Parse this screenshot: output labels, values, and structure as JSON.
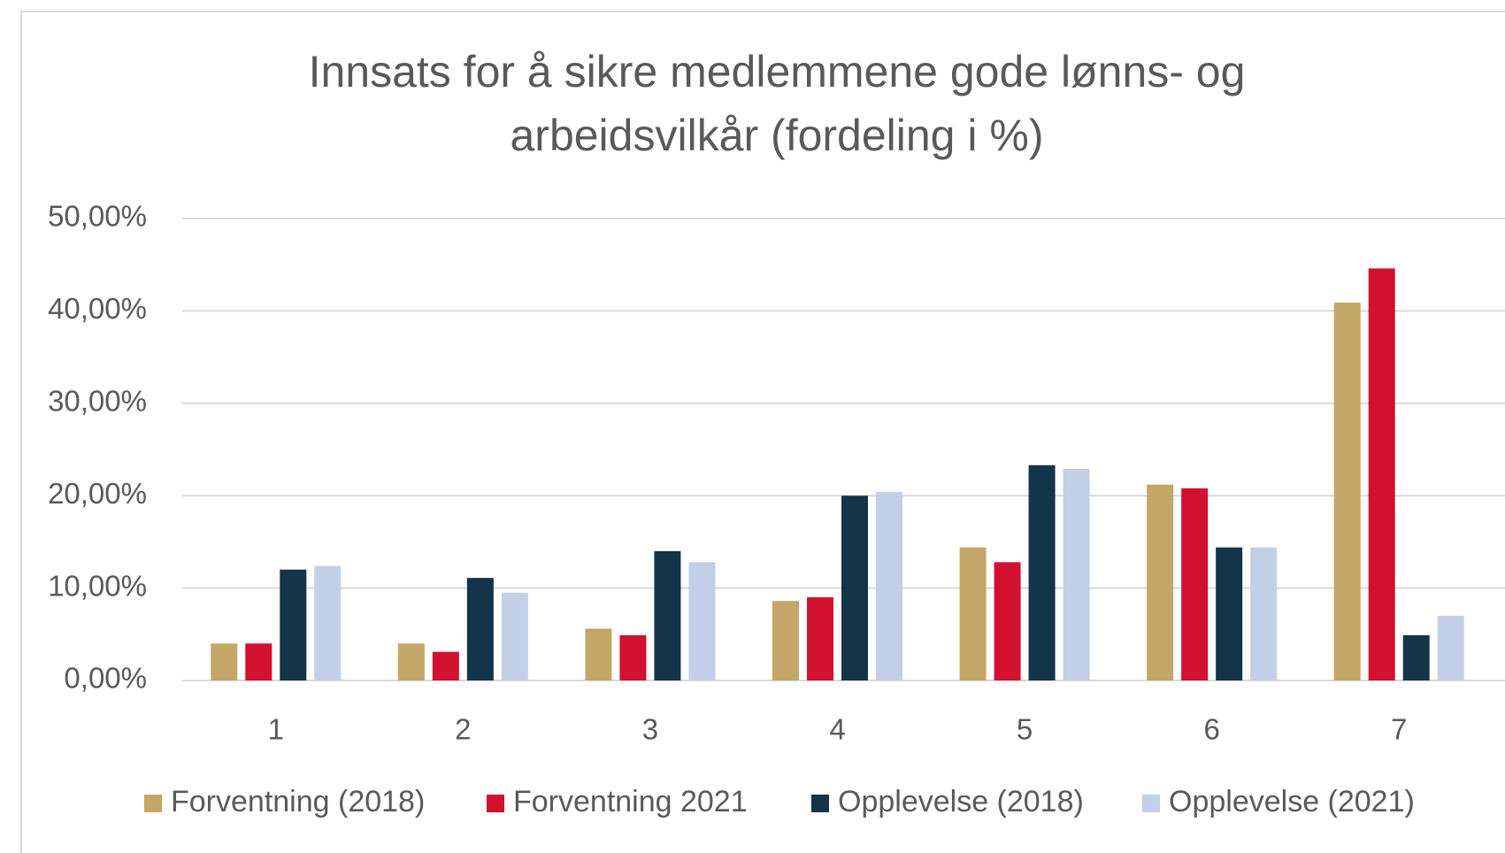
{
  "chart_data": {
    "type": "bar",
    "title": [
      "Innsats for å sikre medlemmene gode lønns- og",
      "arbeidsvilkår (fordeling i %)"
    ],
    "categories": [
      "1",
      "2",
      "3",
      "4",
      "5",
      "6",
      "7"
    ],
    "series": [
      {
        "name": "Forventning (2018)",
        "color": "#c4a668",
        "values": [
          4.0,
          4.0,
          5.6,
          8.6,
          14.4,
          21.2,
          40.9
        ]
      },
      {
        "name": "Forventning 2021",
        "color": "#d2102f",
        "values": [
          4.0,
          3.1,
          4.9,
          9.0,
          12.8,
          20.8,
          44.6
        ]
      },
      {
        "name": "Opplevelse (2018)",
        "color": "#133449",
        "values": [
          12.0,
          11.1,
          14.0,
          20.0,
          23.3,
          14.4,
          4.9
        ]
      },
      {
        "name": "Opplevelse (2021)",
        "color": "#c3cfe6",
        "values": [
          12.4,
          9.5,
          12.8,
          20.4,
          22.9,
          14.4,
          7.0
        ]
      }
    ],
    "ylim": [
      0,
      50
    ],
    "yticks": [
      {
        "value": 0,
        "label": "0,00%"
      },
      {
        "value": 10,
        "label": "10,00%"
      },
      {
        "value": 20,
        "label": "20,00%"
      },
      {
        "value": 30,
        "label": "30,00%"
      },
      {
        "value": 40,
        "label": "40,00%"
      },
      {
        "value": 50,
        "label": "50,00%"
      }
    ],
    "grid": true,
    "legend": "bottom"
  }
}
